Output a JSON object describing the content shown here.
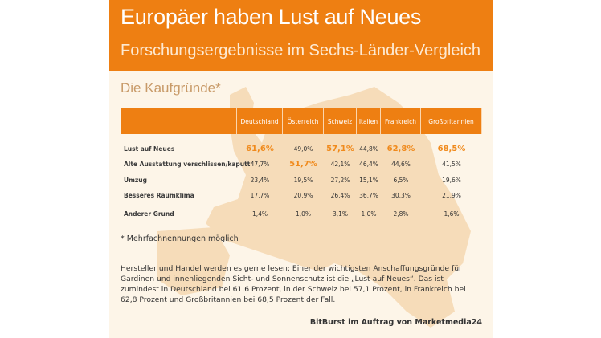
{
  "header": {
    "title": "Europäer haben Lust auf Neues",
    "subtitle": "Forschungsergebnisse im Sechs-Länder-Vergleich"
  },
  "section_title": "Die Kaufgründe*",
  "colors": {
    "accent": "#ee7f12",
    "highlight": "#f08a1c",
    "background": "#fdf5e8",
    "map": "#f6d9b4"
  },
  "table": {
    "columns": [
      "Deutschland",
      "Österreich",
      "Schweiz",
      "Italien",
      "Frankreich",
      "Großbritannien"
    ],
    "rows": [
      {
        "label": "Lust auf Neues",
        "values": [
          "61,6%",
          "49,0%",
          "57,1%",
          "44,8%",
          "62,8%",
          "68,5%"
        ],
        "highlight": [
          true,
          false,
          true,
          false,
          true,
          true
        ]
      },
      {
        "label": "Alte Ausstattung verschlissen/kaputt",
        "values": [
          "47,7%",
          "51,7%",
          "42,1%",
          "46,4%",
          "44,6%",
          "41,5%"
        ],
        "highlight": [
          false,
          true,
          false,
          false,
          false,
          false
        ]
      },
      {
        "label": "Umzug",
        "values": [
          "23,4%",
          "19,5%",
          "27,2%",
          "15,1%",
          "6,5%",
          "19,6%"
        ],
        "highlight": [
          false,
          false,
          false,
          false,
          false,
          false
        ]
      },
      {
        "label": "Besseres Raumklima",
        "values": [
          "17,7%",
          "20,9%",
          "26,4%",
          "36,7%",
          "30,3%",
          "21,9%"
        ],
        "highlight": [
          false,
          false,
          false,
          false,
          false,
          false
        ]
      },
      {
        "label": "Anderer Grund",
        "values": [
          "1,4%",
          "1,0%",
          "3,1%",
          "1,0%",
          "2,8%",
          "1,6%"
        ],
        "highlight": [
          false,
          false,
          false,
          false,
          false,
          false
        ]
      }
    ]
  },
  "footnote": "* Mehrfachnennungen möglich",
  "paragraph": "Hersteller und Handel werden es gerne lesen: Einer der wichtigsten Anschaffungsgründe für Gardinen und innenliegenden Sicht- und Sonnenschutz ist die „Lust auf Neues“. Das ist zumindest in Deutschland bei 61,6 Prozent, in der Schweiz bei 57,1 Prozent, in Frankreich bei 62,8 Prozent und Großbritannien bei 68,5 Prozent der Fall.",
  "credit": "BitBurst im Auftrag von Marketmedia24"
}
